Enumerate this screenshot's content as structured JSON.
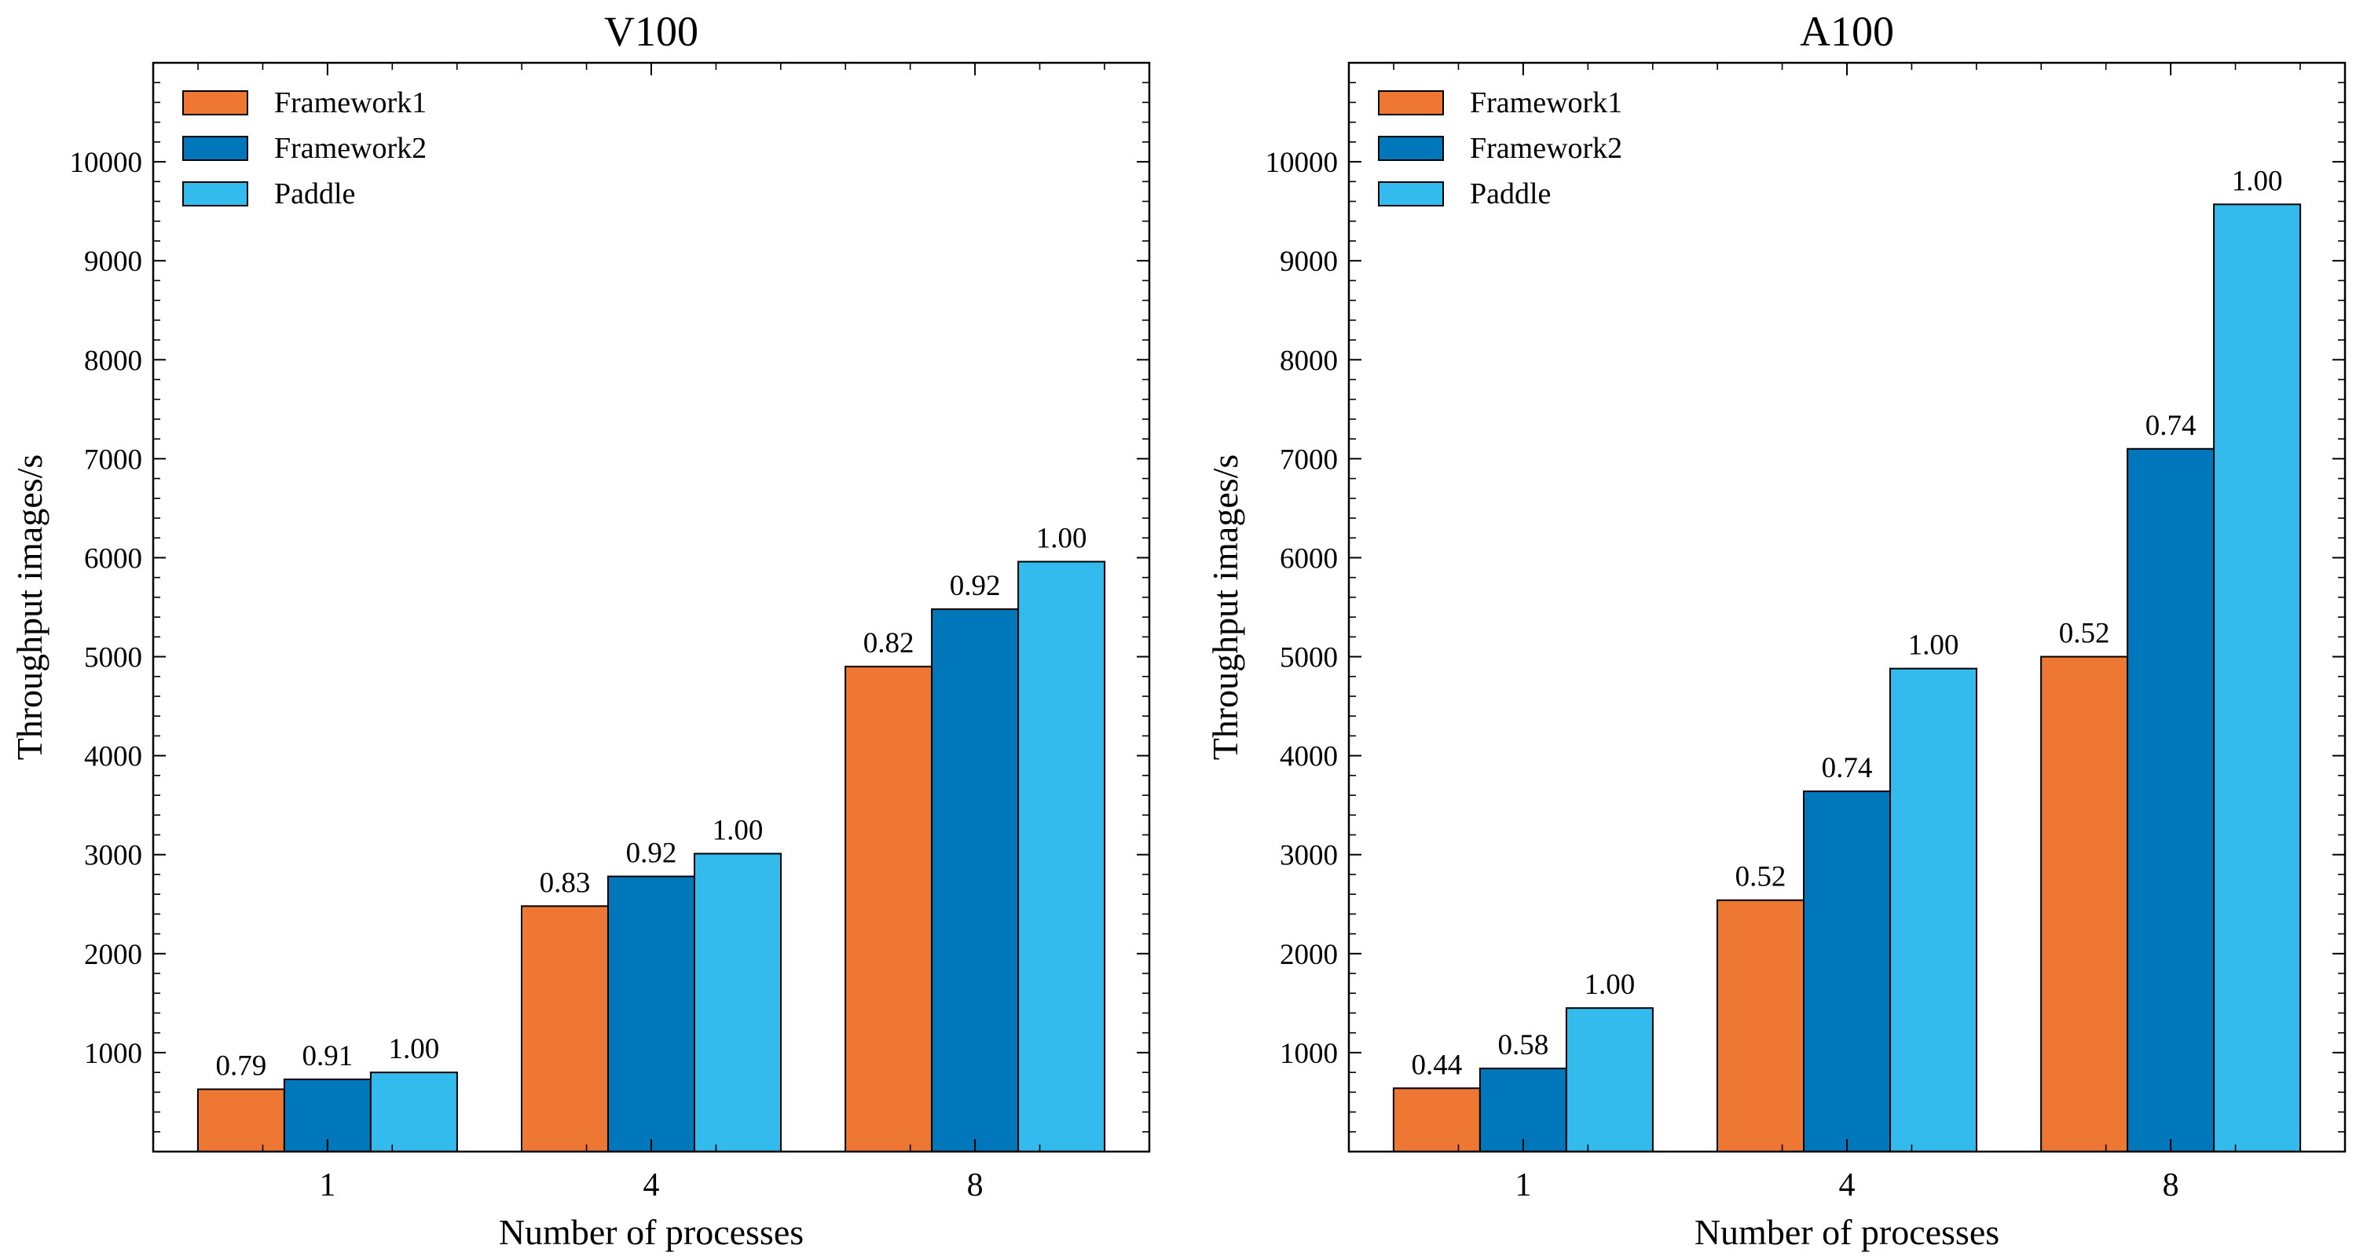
{
  "chart_data": [
    {
      "type": "bar",
      "title": "V100",
      "xlabel": "Number of processes",
      "ylabel": "Throughput images/s",
      "categories": [
        "1",
        "4",
        "8"
      ],
      "ylim": [
        0,
        11000
      ],
      "yticks": [
        "1000",
        "2000",
        "3000",
        "4000",
        "5000",
        "6000",
        "7000",
        "8000",
        "9000",
        "10000"
      ],
      "legend_position": "top-left",
      "series": [
        {
          "name": "Framework1",
          "color": "#EE7733",
          "values": [
            630,
            2480,
            4900
          ],
          "labels": [
            "0.79",
            "0.83",
            "0.82"
          ]
        },
        {
          "name": "Framework2",
          "color": "#0077BB",
          "values": [
            730,
            2780,
            5480
          ],
          "labels": [
            "0.91",
            "0.92",
            "0.92"
          ]
        },
        {
          "name": "Paddle",
          "color": "#33BBEE",
          "values": [
            800,
            3010,
            5960
          ],
          "labels": [
            "1.00",
            "1.00",
            "1.00"
          ]
        }
      ]
    },
    {
      "type": "bar",
      "title": "A100",
      "xlabel": "Number of processes",
      "ylabel": "Throughput images/s",
      "categories": [
        "1",
        "4",
        "8"
      ],
      "ylim": [
        0,
        11000
      ],
      "yticks": [
        "1000",
        "2000",
        "3000",
        "4000",
        "5000",
        "6000",
        "7000",
        "8000",
        "9000",
        "10000"
      ],
      "legend_position": "top-left",
      "series": [
        {
          "name": "Framework1",
          "color": "#EE7733",
          "values": [
            640,
            2540,
            5000
          ],
          "labels": [
            "0.44",
            "0.52",
            "0.52"
          ]
        },
        {
          "name": "Framework2",
          "color": "#0077BB",
          "values": [
            840,
            3640,
            7100
          ],
          "labels": [
            "0.58",
            "0.74",
            "0.74"
          ]
        },
        {
          "name": "Paddle",
          "color": "#33BBEE",
          "values": [
            1450,
            4880,
            9570
          ],
          "labels": [
            "1.00",
            "1.00",
            "1.00"
          ]
        }
      ]
    }
  ]
}
